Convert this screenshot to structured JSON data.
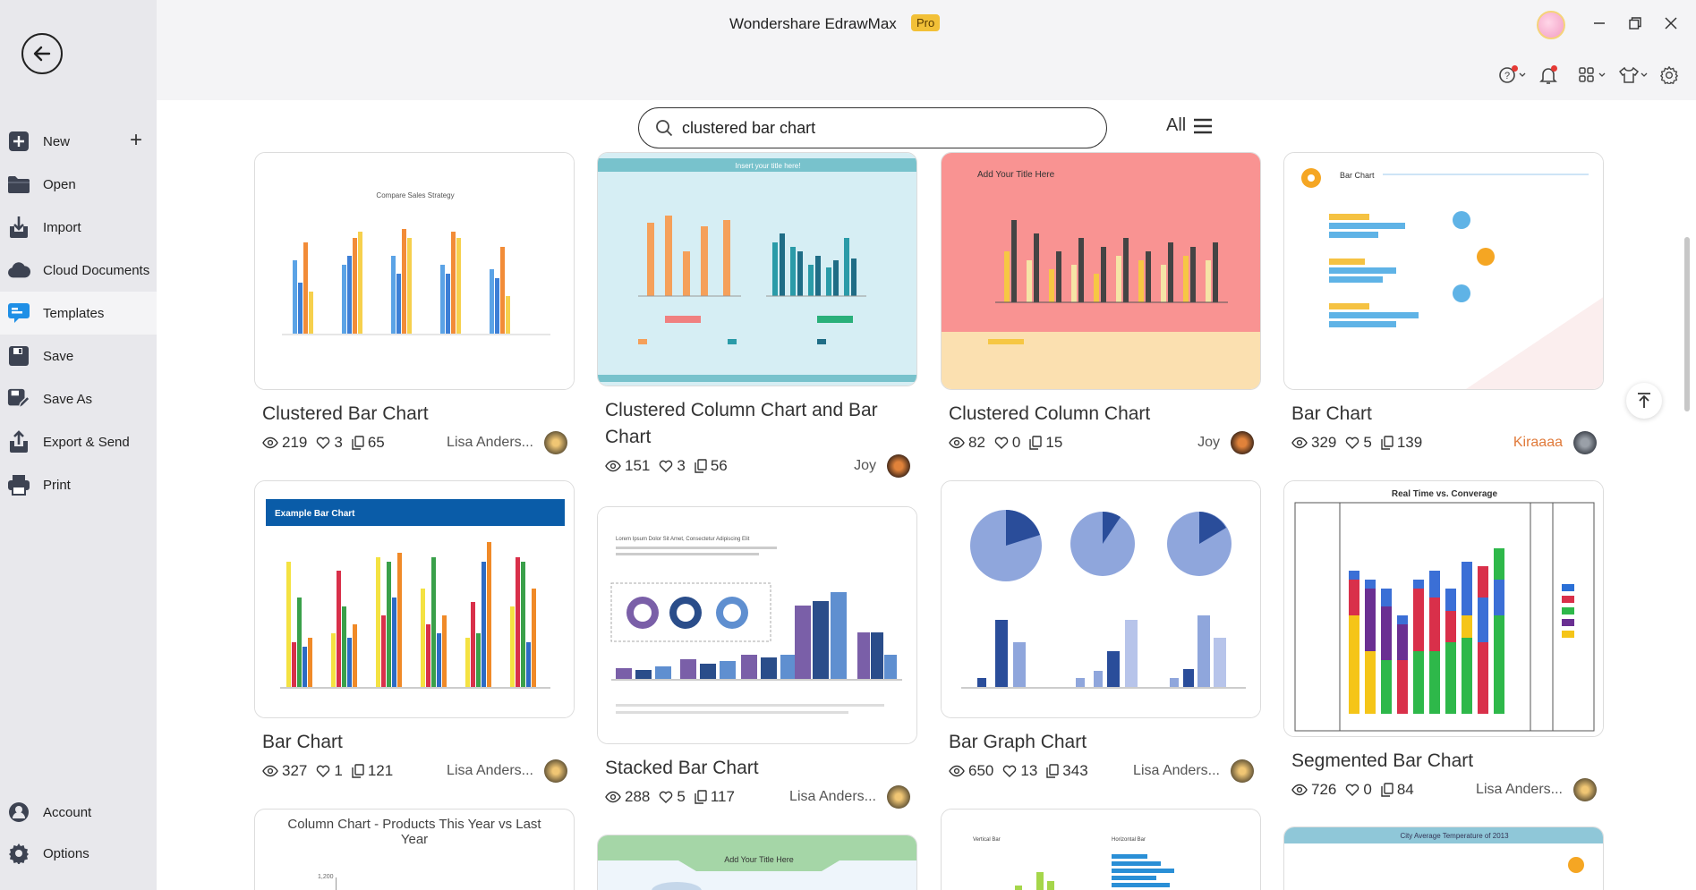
{
  "window": {
    "title": "Wondershare EdrawMax",
    "badge": "Pro"
  },
  "sidebar": {
    "items": [
      {
        "label": "New",
        "icon": "plus-square-icon"
      },
      {
        "label": "Open",
        "icon": "folder-icon"
      },
      {
        "label": "Import",
        "icon": "import-icon"
      },
      {
        "label": "Cloud Documents",
        "icon": "cloud-icon"
      },
      {
        "label": "Templates",
        "icon": "templates-icon"
      },
      {
        "label": "Save",
        "icon": "save-icon"
      },
      {
        "label": "Save As",
        "icon": "save-as-icon"
      },
      {
        "label": "Export & Send",
        "icon": "export-icon"
      },
      {
        "label": "Print",
        "icon": "print-icon"
      }
    ],
    "bottom": [
      {
        "label": "Account",
        "icon": "account-icon"
      },
      {
        "label": "Options",
        "icon": "gear-icon"
      }
    ]
  },
  "search": {
    "value": "clustered bar chart",
    "filter_label": "All"
  },
  "templates": [
    {
      "title": "Clustered Bar Chart",
      "views": "219",
      "likes": "3",
      "copies": "65",
      "author": "Lisa Anders...",
      "preview": {
        "heading": "Compare Sales Strategy"
      }
    },
    {
      "title": "Clustered Column Chart and Bar Chart",
      "views": "151",
      "likes": "3",
      "copies": "56",
      "author": "Joy",
      "preview": {
        "heading": "Insert your title here!"
      }
    },
    {
      "title": "Clustered Column Chart",
      "views": "82",
      "likes": "0",
      "copies": "15",
      "author": "Joy",
      "preview": {
        "heading": "Add Your Title Here"
      }
    },
    {
      "title": "Bar Chart",
      "views": "329",
      "likes": "5",
      "copies": "139",
      "author": "Kiraaaa",
      "preview": {
        "heading": "Bar Chart"
      }
    },
    {
      "title": "Bar Chart",
      "views": "327",
      "likes": "1",
      "copies": "121",
      "author": "Lisa Anders...",
      "preview": {
        "heading": "Example Bar Chart"
      }
    },
    {
      "title": "Stacked Bar Chart",
      "views": "288",
      "likes": "5",
      "copies": "117",
      "author": "Lisa Anders...",
      "preview": {
        "heading": "Lorem Ipsum Dolor Sit Amet, Consectetur Adipiscing Elit"
      }
    },
    {
      "title": "Bar Graph Chart",
      "views": "650",
      "likes": "13",
      "copies": "343",
      "author": "Lisa Anders...",
      "preview": {
        "heading": ""
      }
    },
    {
      "title": "Segmented Bar Chart",
      "views": "726",
      "likes": "0",
      "copies": "84",
      "author": "Lisa Anders...",
      "preview": {
        "heading": "Real Time vs. Converage"
      }
    },
    {
      "title": "",
      "preview": {
        "heading": "Column Chart - Products This Year vs Last Year",
        "tick": "1,200"
      }
    },
    {
      "title": "",
      "preview": {
        "heading": "Add Your Title Here"
      }
    },
    {
      "title": "",
      "preview": {
        "heading": "Vertical Bar",
        "heading2": "Horizontal Bar"
      }
    },
    {
      "title": "",
      "preview": {
        "heading": "City Average Temperature of 2013"
      }
    }
  ],
  "colors": {
    "accent": "#2196f3",
    "pro": "#f2c037",
    "sidebar_bg": "#e8e8ec",
    "active_item_bg": "#f4f4f6"
  }
}
